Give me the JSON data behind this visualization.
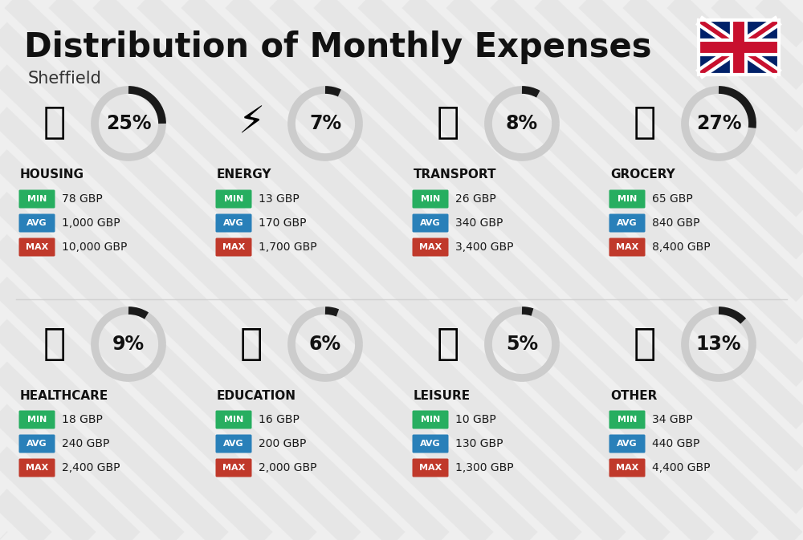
{
  "title": "Distribution of Monthly Expenses",
  "subtitle": "Sheffield",
  "bg_color": "#efefef",
  "categories": [
    {
      "name": "HOUSING",
      "percent": 25,
      "min": "78 GBP",
      "avg": "1,000 GBP",
      "max": "10,000 GBP",
      "col": 0,
      "row": 0
    },
    {
      "name": "ENERGY",
      "percent": 7,
      "min": "13 GBP",
      "avg": "170 GBP",
      "max": "1,700 GBP",
      "col": 1,
      "row": 0
    },
    {
      "name": "TRANSPORT",
      "percent": 8,
      "min": "26 GBP",
      "avg": "340 GBP",
      "max": "3,400 GBP",
      "col": 2,
      "row": 0
    },
    {
      "name": "GROCERY",
      "percent": 27,
      "min": "65 GBP",
      "avg": "840 GBP",
      "max": "8,400 GBP",
      "col": 3,
      "row": 0
    },
    {
      "name": "HEALTHCARE",
      "percent": 9,
      "min": "18 GBP",
      "avg": "240 GBP",
      "max": "2,400 GBP",
      "col": 0,
      "row": 1
    },
    {
      "name": "EDUCATION",
      "percent": 6,
      "min": "16 GBP",
      "avg": "200 GBP",
      "max": "2,000 GBP",
      "col": 1,
      "row": 1
    },
    {
      "name": "LEISURE",
      "percent": 5,
      "min": "10 GBP",
      "avg": "130 GBP",
      "max": "1,300 GBP",
      "col": 2,
      "row": 1
    },
    {
      "name": "OTHER",
      "percent": 13,
      "min": "34 GBP",
      "avg": "440 GBP",
      "max": "4,400 GBP",
      "col": 3,
      "row": 1
    }
  ],
  "color_min": "#27ae60",
  "color_avg": "#2980b9",
  "color_max": "#c0392b",
  "color_ring_filled": "#1a1a1a",
  "color_ring_empty": "#cccccc",
  "title_fontsize": 30,
  "subtitle_fontsize": 15,
  "category_fontsize": 11,
  "percent_fontsize": 17,
  "value_fontsize": 10,
  "label_fontsize": 8,
  "stripe_color": "#d8d8d8",
  "stripe_alpha": 0.35
}
